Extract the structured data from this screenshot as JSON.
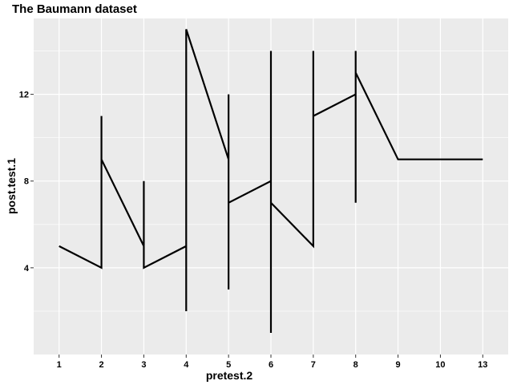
{
  "chart_data": {
    "type": "line",
    "title": "The Baumann dataset",
    "xlabel": "pretest.2",
    "ylabel": "post.test.1",
    "x_categories": [
      "1",
      "2",
      "3",
      "4",
      "5",
      "6",
      "7",
      "8",
      "9",
      "10",
      "13"
    ],
    "y_ticks": [
      4,
      8,
      12
    ],
    "ylim": [
      0,
      15.5
    ],
    "grid": true,
    "background": "#EBEBEB",
    "line_color": "#000000",
    "series": [
      {
        "points": [
          {
            "x": "1",
            "y": 5
          },
          {
            "x": "2",
            "y": 4
          },
          {
            "x": "2",
            "y": 11
          },
          {
            "x": "2",
            "y": 9
          },
          {
            "x": "3",
            "y": 5
          },
          {
            "x": "3",
            "y": 8
          },
          {
            "x": "3",
            "y": 4
          },
          {
            "x": "4",
            "y": 5
          },
          {
            "x": "4",
            "y": 2
          },
          {
            "x": "4",
            "y": 15
          },
          {
            "x": "5",
            "y": 9
          },
          {
            "x": "5",
            "y": 12
          },
          {
            "x": "5",
            "y": 3
          },
          {
            "x": "5",
            "y": 7
          },
          {
            "x": "6",
            "y": 8
          },
          {
            "x": "6",
            "y": 14
          },
          {
            "x": "6",
            "y": 1
          },
          {
            "x": "6",
            "y": 7
          },
          {
            "x": "7",
            "y": 5
          },
          {
            "x": "7",
            "y": 14
          },
          {
            "x": "7",
            "y": 11
          },
          {
            "x": "8",
            "y": 12
          },
          {
            "x": "8",
            "y": 14
          },
          {
            "x": "8",
            "y": 7
          },
          {
            "x": "8",
            "y": 13
          },
          {
            "x": "9",
            "y": 9
          },
          {
            "x": "10",
            "y": 9
          },
          {
            "x": "13",
            "y": 9
          }
        ]
      }
    ]
  }
}
